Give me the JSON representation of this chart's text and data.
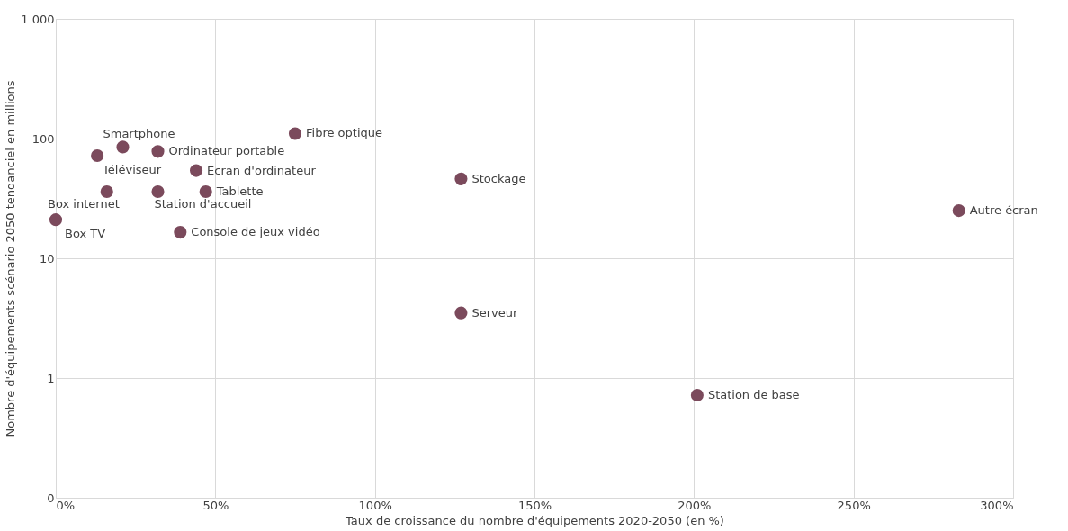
{
  "chart_data": {
    "type": "scatter",
    "xlabel": "Taux de croissance du nombre d'équipements 2020-2050 (en %)",
    "ylabel": "Nombre d'équipements scénario 2050 tendanciel en millions",
    "log": "y",
    "grid": true,
    "legend": false,
    "marker": "circle",
    "xlim": [
      0,
      300
    ],
    "xticks": [
      {
        "value": 0,
        "label": "0%"
      },
      {
        "value": 50,
        "label": "50%"
      },
      {
        "value": 100,
        "label": "100%"
      },
      {
        "value": 150,
        "label": "150%"
      },
      {
        "value": 200,
        "label": "200%"
      },
      {
        "value": 250,
        "label": "250%"
      },
      {
        "value": 300,
        "label": "300%"
      }
    ],
    "ylim": [
      0.1,
      1000
    ],
    "yticks": [
      {
        "value": 0.1,
        "label": "0"
      },
      1,
      10,
      100,
      {
        "value": 1000,
        "label": "1 000"
      }
    ],
    "series": [
      {
        "name": "Box TV",
        "color": "#7b4a5c",
        "x": [
          0
        ],
        "values": [
          21
        ]
      },
      {
        "name": "Téléviseur",
        "color": "#7b4a5c",
        "x": [
          13
        ],
        "values": [
          72
        ]
      },
      {
        "name": "Smartphone",
        "color": "#7b4a5c",
        "x": [
          21
        ],
        "values": [
          85
        ]
      },
      {
        "name": "Ordinateur portable",
        "color": "#7b4a5c",
        "x": [
          32
        ],
        "values": [
          78
        ]
      },
      {
        "name": "Box internet",
        "color": "#7b4a5c",
        "x": [
          16
        ],
        "values": [
          36
        ]
      },
      {
        "name": "Station d'accueil",
        "color": "#7b4a5c",
        "x": [
          32
        ],
        "values": [
          36
        ]
      },
      {
        "name": "Console de jeux vidéo",
        "color": "#7b4a5c",
        "x": [
          39
        ],
        "values": [
          16.5
        ]
      },
      {
        "name": "Ecran d'ordinateur",
        "color": "#7b4a5c",
        "x": [
          44
        ],
        "values": [
          54
        ]
      },
      {
        "name": "Tablette",
        "color": "#7b4a5c",
        "x": [
          47
        ],
        "values": [
          36
        ]
      },
      {
        "name": "Fibre optique",
        "color": "#7b4a5c",
        "x": [
          75
        ],
        "values": [
          110
        ]
      },
      {
        "name": "Stockage",
        "color": "#7b4a5c",
        "x": [
          127
        ],
        "values": [
          46
        ]
      },
      {
        "name": "Serveur",
        "color": "#7b4a5c",
        "x": [
          127
        ],
        "values": [
          3.5
        ]
      },
      {
        "name": "Station de base",
        "color": "#7b4a5c",
        "x": [
          201
        ],
        "values": [
          0.72
        ]
      },
      {
        "name": "Autre écran",
        "color": "#7b4a5c",
        "x": [
          283
        ],
        "values": [
          25
        ]
      }
    ]
  }
}
